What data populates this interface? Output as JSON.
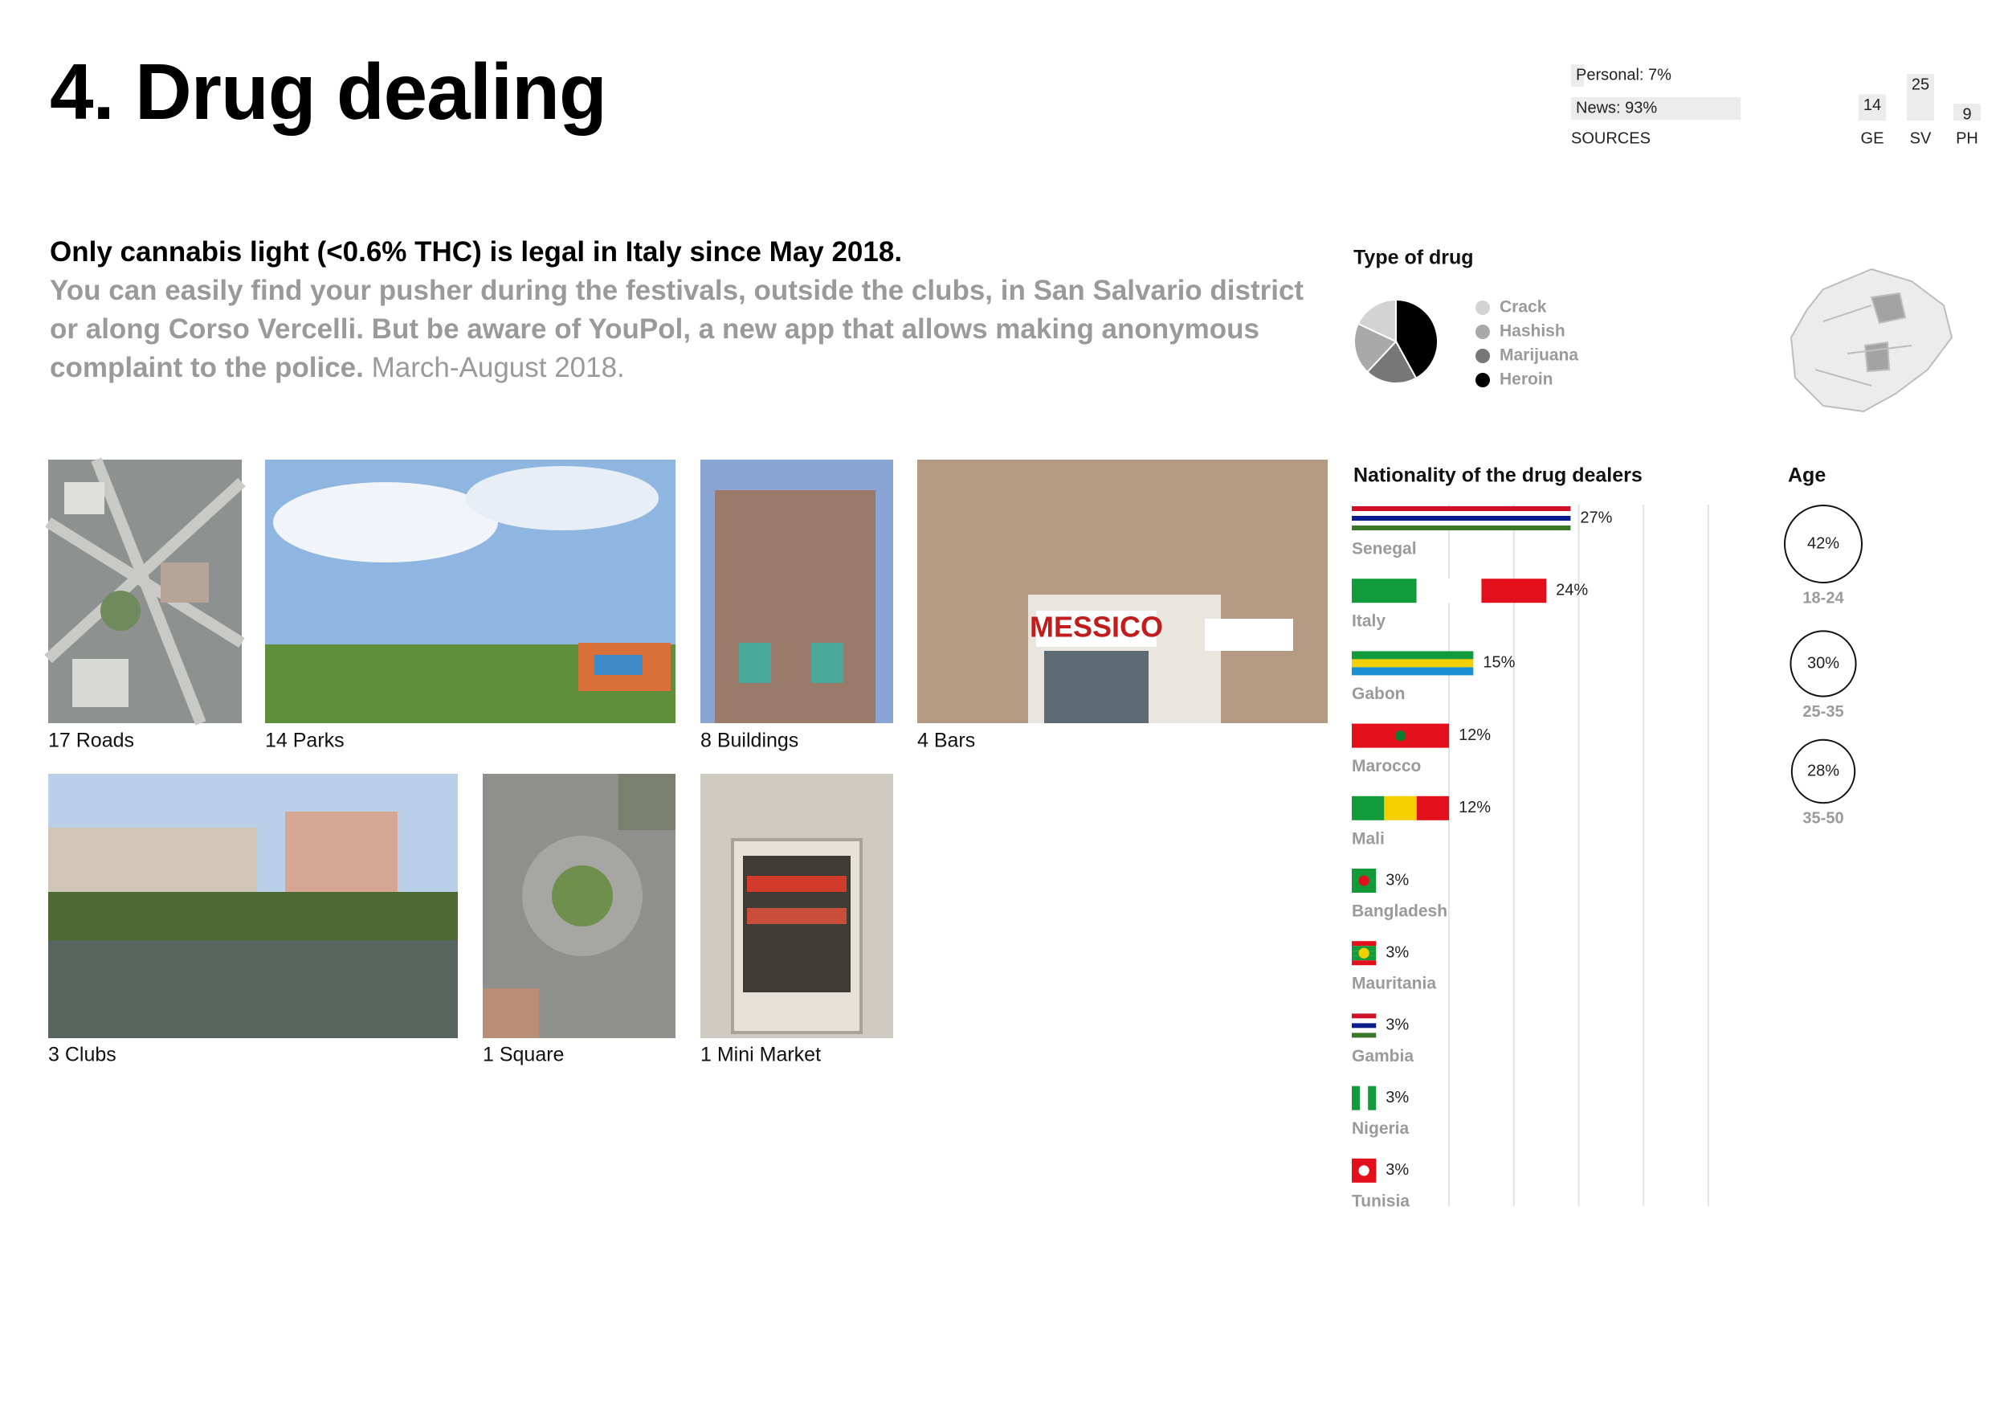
{
  "header": {
    "title": "4. Drug dealing"
  },
  "intro": {
    "headline": "Only cannabis light (<0.6% THC) is legal in Italy since May 2018.",
    "body": "You can easily find your pusher during the festivals, outside the clubs, in San Salvario district or along Corso Vercelli. But be aware of YouPol, a new app that allows making anonymous complaint to the police.",
    "period": "March-August 2018."
  },
  "places": [
    "17 Roads",
    "14 Parks",
    "8 Buildings",
    "4 Bars",
    "3 Clubs",
    "1 Square",
    "1 Mini Market"
  ],
  "chart_data": [
    {
      "type": "hbar",
      "values": [
        7,
        93
      ],
      "value_labels": [
        "Personal: 7%",
        "News: 93%"
      ],
      "xlabel": "SOURCES",
      "xlim": [
        0,
        100
      ],
      "color": "#ececec"
    },
    {
      "type": "bar",
      "categories": [
        "GE",
        "SV",
        "PH"
      ],
      "values": [
        14,
        25,
        9
      ],
      "ylim": [
        0,
        25
      ],
      "color": "#ececec"
    },
    {
      "type": "pie",
      "title": "Type of drug",
      "categories": [
        "Crack",
        "Hashish",
        "Marijuana",
        "Heroin"
      ],
      "values": [
        18,
        20,
        20,
        42
      ],
      "colors": [
        "#d3d3d3",
        "#a9a9a9",
        "#777777",
        "#000000"
      ]
    },
    {
      "type": "flagbar",
      "title": "Nationality of the drug dealers",
      "categories": [
        "Senegal",
        "Italy",
        "Gabon",
        "Marocco",
        "Mali",
        "Bangladesh",
        "Mauritania",
        "Gambia",
        "Nigeria",
        "Tunisia"
      ],
      "values": [
        27,
        24,
        15,
        12,
        12,
        3,
        3,
        3,
        3,
        3
      ],
      "value_labels": [
        "27%",
        "24%",
        "15%",
        "12%",
        "12%",
        "3%",
        "3%",
        "3%",
        "3%",
        "3%"
      ],
      "xlim": [
        0,
        45
      ],
      "xticks": [
        12,
        20,
        28,
        36,
        44
      ],
      "grid": true,
      "flags": [
        {
          "dir": "h",
          "colors": [
            "#ce1126",
            "#ffffff",
            "#0c1c8c",
            "#ffffff",
            "#3a7728"
          ]
        },
        {
          "dir": "v",
          "colors": [
            "#119b3a",
            "#ffffff",
            "#e3101b"
          ]
        },
        {
          "dir": "h",
          "colors": [
            "#119b3a",
            "#f5d000",
            "#1a8fd6"
          ]
        },
        {
          "dir": "h",
          "colors": [
            "#e3101b"
          ],
          "emblem": "#0a7a2f"
        },
        {
          "dir": "v",
          "colors": [
            "#119b3a",
            "#f5d000",
            "#e3101b"
          ]
        },
        {
          "dir": "h",
          "colors": [
            "#119b3a"
          ],
          "emblem": "#e3101b"
        },
        {
          "dir": "h",
          "colors": [
            "#e3101b",
            "#119b3a",
            "#119b3a",
            "#119b3a",
            "#e3101b"
          ],
          "emblem": "#f5d000"
        },
        {
          "dir": "h",
          "colors": [
            "#ce1126",
            "#ffffff",
            "#0c1c8c",
            "#ffffff",
            "#3a7728"
          ]
        },
        {
          "dir": "v",
          "colors": [
            "#119b3a",
            "#ffffff",
            "#119b3a"
          ]
        },
        {
          "dir": "h",
          "colors": [
            "#e3101b"
          ],
          "emblem": "#ffffff"
        }
      ]
    },
    {
      "type": "bubble",
      "title": "Age",
      "categories": [
        "18-24",
        "25-35",
        "35-50"
      ],
      "values": [
        42,
        30,
        28
      ],
      "value_labels": [
        "42%",
        "30%",
        "28%"
      ]
    }
  ]
}
